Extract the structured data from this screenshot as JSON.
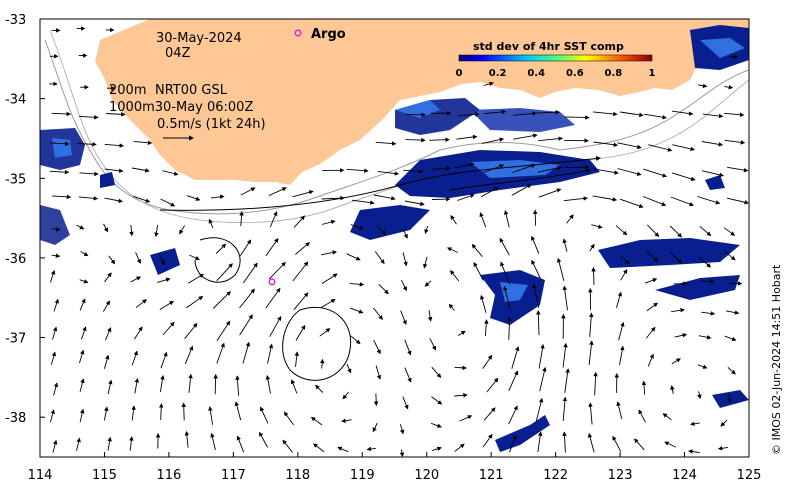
{
  "map": {
    "date": "30-May-2024",
    "hour": "04Z",
    "depth_200": "200m",
    "product": "NRT00 GSL",
    "depth_1000_and_time": "1000m30-May 06:00Z",
    "scale_label": "0.5m/s (1kt 24h)",
    "argo_label": "Argo",
    "credit": "© IMOS 02-Jun-2024 14:51 Hobart"
  },
  "axes": {
    "x_ticks": [
      "114",
      "115",
      "116",
      "117",
      "118",
      "119",
      "120",
      "121",
      "122",
      "123",
      "124",
      "125"
    ],
    "y_ticks": [
      "-33",
      "-34",
      "-35",
      "-36",
      "-37",
      "-38"
    ],
    "lon_range": [
      114,
      125
    ],
    "lat_range": [
      -38.5,
      -33
    ]
  },
  "colorbar": {
    "title": "std dev of 4hr SST comp",
    "ticks": [
      "0",
      "0.2",
      "0.4",
      "0.6",
      "0.8",
      "1"
    ],
    "range": [
      0,
      1
    ]
  },
  "colors": {
    "land": "#fdc896",
    "argo": "#e020e0",
    "sst_low": "#0a1f8f",
    "sst_mid": "#2f6fe0",
    "contour": "#9a9a9a"
  },
  "argo_float": {
    "lon": 117.6,
    "lat": -36.3
  }
}
